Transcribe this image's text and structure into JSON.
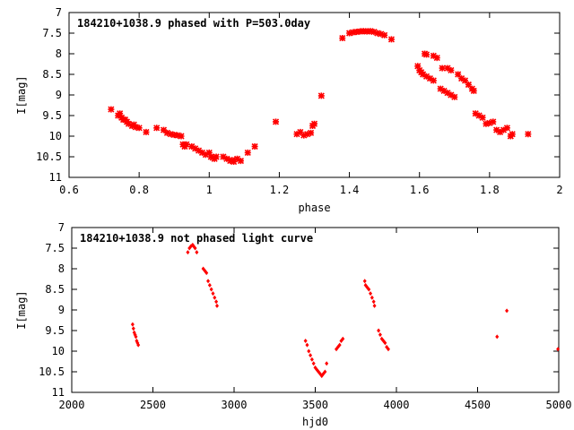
{
  "chart_data": [
    {
      "type": "scatter",
      "title": "184210+1038.9 phased with P=503.0day",
      "xlabel": "phase",
      "ylabel": "I[mag]",
      "xlim": [
        0.6,
        2
      ],
      "ylim": [
        7,
        11
      ],
      "y_inverted": true,
      "grid": false,
      "marker_color": "#ff0000",
      "marker": "cross",
      "x_ticks": [
        "0.6",
        "0.8",
        "1",
        "1.2",
        "1.4",
        "1.6",
        "1.8",
        "2"
      ],
      "y_ticks": [
        "7",
        "7.5",
        "8",
        "8.5",
        "9",
        "9.5",
        "10",
        "10.5",
        "11"
      ],
      "series": [
        {
          "points": [
            [
              0.72,
              9.35
            ],
            [
              0.74,
              9.5
            ],
            [
              0.745,
              9.45
            ],
            [
              0.75,
              9.55
            ],
            [
              0.755,
              9.6
            ],
            [
              0.76,
              9.6
            ],
            [
              0.765,
              9.65
            ],
            [
              0.77,
              9.7
            ],
            [
              0.78,
              9.75
            ],
            [
              0.785,
              9.72
            ],
            [
              0.79,
              9.78
            ],
            [
              0.8,
              9.8
            ],
            [
              0.82,
              9.9
            ],
            [
              0.85,
              9.8
            ],
            [
              0.87,
              9.85
            ],
            [
              0.88,
              9.92
            ],
            [
              0.89,
              9.95
            ],
            [
              0.9,
              9.97
            ],
            [
              0.91,
              9.98
            ],
            [
              0.92,
              10.0
            ],
            [
              0.925,
              10.2
            ],
            [
              0.93,
              10.25
            ],
            [
              0.935,
              10.2
            ],
            [
              0.95,
              10.25
            ],
            [
              0.96,
              10.3
            ],
            [
              0.97,
              10.35
            ],
            [
              0.98,
              10.4
            ],
            [
              0.99,
              10.45
            ],
            [
              1.0,
              10.4
            ],
            [
              1.005,
              10.5
            ],
            [
              1.01,
              10.52
            ],
            [
              1.015,
              10.55
            ],
            [
              1.02,
              10.5
            ],
            [
              1.04,
              10.5
            ],
            [
              1.05,
              10.55
            ],
            [
              1.06,
              10.6
            ],
            [
              1.065,
              10.58
            ],
            [
              1.07,
              10.62
            ],
            [
              1.08,
              10.55
            ],
            [
              1.09,
              10.6
            ],
            [
              1.11,
              10.4
            ],
            [
              1.13,
              10.25
            ],
            [
              1.19,
              9.65
            ],
            [
              1.25,
              9.95
            ],
            [
              1.26,
              9.9
            ],
            [
              1.27,
              9.98
            ],
            [
              1.28,
              9.95
            ],
            [
              1.29,
              9.92
            ],
            [
              1.295,
              9.75
            ],
            [
              1.3,
              9.7
            ],
            [
              1.32,
              9.02
            ],
            [
              1.38,
              7.62
            ],
            [
              1.4,
              7.5
            ],
            [
              1.41,
              7.48
            ],
            [
              1.42,
              7.47
            ],
            [
              1.43,
              7.46
            ],
            [
              1.44,
              7.45
            ],
            [
              1.45,
              7.46
            ],
            [
              1.46,
              7.45
            ],
            [
              1.47,
              7.47
            ],
            [
              1.48,
              7.5
            ],
            [
              1.49,
              7.52
            ],
            [
              1.5,
              7.55
            ],
            [
              1.52,
              7.65
            ],
            [
              1.595,
              8.3
            ],
            [
              1.6,
              8.4
            ],
            [
              1.605,
              8.45
            ],
            [
              1.61,
              8.5
            ],
            [
              1.62,
              8.55
            ],
            [
              1.63,
              8.6
            ],
            [
              1.64,
              8.65
            ],
            [
              1.615,
              8.0
            ],
            [
              1.62,
              8.02
            ],
            [
              1.64,
              8.05
            ],
            [
              1.65,
              8.1
            ],
            [
              1.665,
              8.35
            ],
            [
              1.68,
              8.35
            ],
            [
              1.69,
              8.4
            ],
            [
              1.66,
              8.85
            ],
            [
              1.67,
              8.9
            ],
            [
              1.68,
              8.95
            ],
            [
              1.69,
              9.0
            ],
            [
              1.7,
              9.05
            ],
            [
              1.71,
              8.5
            ],
            [
              1.72,
              8.6
            ],
            [
              1.73,
              8.65
            ],
            [
              1.74,
              8.75
            ],
            [
              1.75,
              8.85
            ],
            [
              1.755,
              8.9
            ],
            [
              1.76,
              9.45
            ],
            [
              1.77,
              9.5
            ],
            [
              1.78,
              9.55
            ],
            [
              1.79,
              9.7
            ],
            [
              1.8,
              9.68
            ],
            [
              1.81,
              9.65
            ],
            [
              1.82,
              9.85
            ],
            [
              1.83,
              9.9
            ],
            [
              1.84,
              9.85
            ],
            [
              1.85,
              9.8
            ],
            [
              1.86,
              10.0
            ],
            [
              1.865,
              9.95
            ],
            [
              1.91,
              9.95
            ]
          ]
        }
      ]
    },
    {
      "type": "scatter",
      "title": "184210+1038.9 not phased light curve",
      "xlabel": "hjd0",
      "ylabel": "I[mag]",
      "xlim": [
        2000,
        5000
      ],
      "ylim": [
        7,
        11
      ],
      "y_inverted": true,
      "grid": false,
      "marker_color": "#ff0000",
      "marker": "diamond",
      "x_ticks": [
        "2000",
        "2500",
        "3000",
        "3500",
        "4000",
        "4500",
        "5000"
      ],
      "y_ticks": [
        "7",
        "7.5",
        "8",
        "8.5",
        "9",
        "9.5",
        "10",
        "10.5",
        "11"
      ],
      "series": [
        {
          "points": [
            [
              2375,
              9.35
            ],
            [
              2380,
              9.45
            ],
            [
              2385,
              9.55
            ],
            [
              2390,
              9.6
            ],
            [
              2395,
              9.65
            ],
            [
              2400,
              9.75
            ],
            [
              2405,
              9.8
            ],
            [
              2410,
              9.85
            ],
            [
              2715,
              7.6
            ],
            [
              2725,
              7.5
            ],
            [
              2735,
              7.45
            ],
            [
              2745,
              7.42
            ],
            [
              2750,
              7.45
            ],
            [
              2760,
              7.5
            ],
            [
              2770,
              7.6
            ],
            [
              2810,
              8.0
            ],
            [
              2820,
              8.05
            ],
            [
              2830,
              8.1
            ],
            [
              2840,
              8.3
            ],
            [
              2850,
              8.4
            ],
            [
              2860,
              8.5
            ],
            [
              2870,
              8.6
            ],
            [
              2880,
              8.7
            ],
            [
              2890,
              8.8
            ],
            [
              2895,
              8.9
            ],
            [
              3440,
              9.75
            ],
            [
              3450,
              9.85
            ],
            [
              3460,
              10.0
            ],
            [
              3470,
              10.1
            ],
            [
              3480,
              10.2
            ],
            [
              3490,
              10.3
            ],
            [
              3500,
              10.4
            ],
            [
              3510,
              10.45
            ],
            [
              3520,
              10.5
            ],
            [
              3530,
              10.55
            ],
            [
              3540,
              10.6
            ],
            [
              3550,
              10.55
            ],
            [
              3560,
              10.5
            ],
            [
              3570,
              10.3
            ],
            [
              3630,
              9.95
            ],
            [
              3640,
              9.9
            ],
            [
              3650,
              9.85
            ],
            [
              3660,
              9.75
            ],
            [
              3670,
              9.7
            ],
            [
              3805,
              8.3
            ],
            [
              3810,
              8.4
            ],
            [
              3820,
              8.45
            ],
            [
              3830,
              8.5
            ],
            [
              3840,
              8.6
            ],
            [
              3850,
              8.7
            ],
            [
              3860,
              8.8
            ],
            [
              3865,
              8.9
            ],
            [
              3890,
              9.5
            ],
            [
              3900,
              9.6
            ],
            [
              3910,
              9.7
            ],
            [
              3920,
              9.75
            ],
            [
              3930,
              9.8
            ],
            [
              3940,
              9.9
            ],
            [
              3950,
              9.95
            ],
            [
              4620,
              9.65
            ],
            [
              4680,
              9.02
            ],
            [
              4995,
              9.95
            ]
          ]
        }
      ]
    }
  ]
}
